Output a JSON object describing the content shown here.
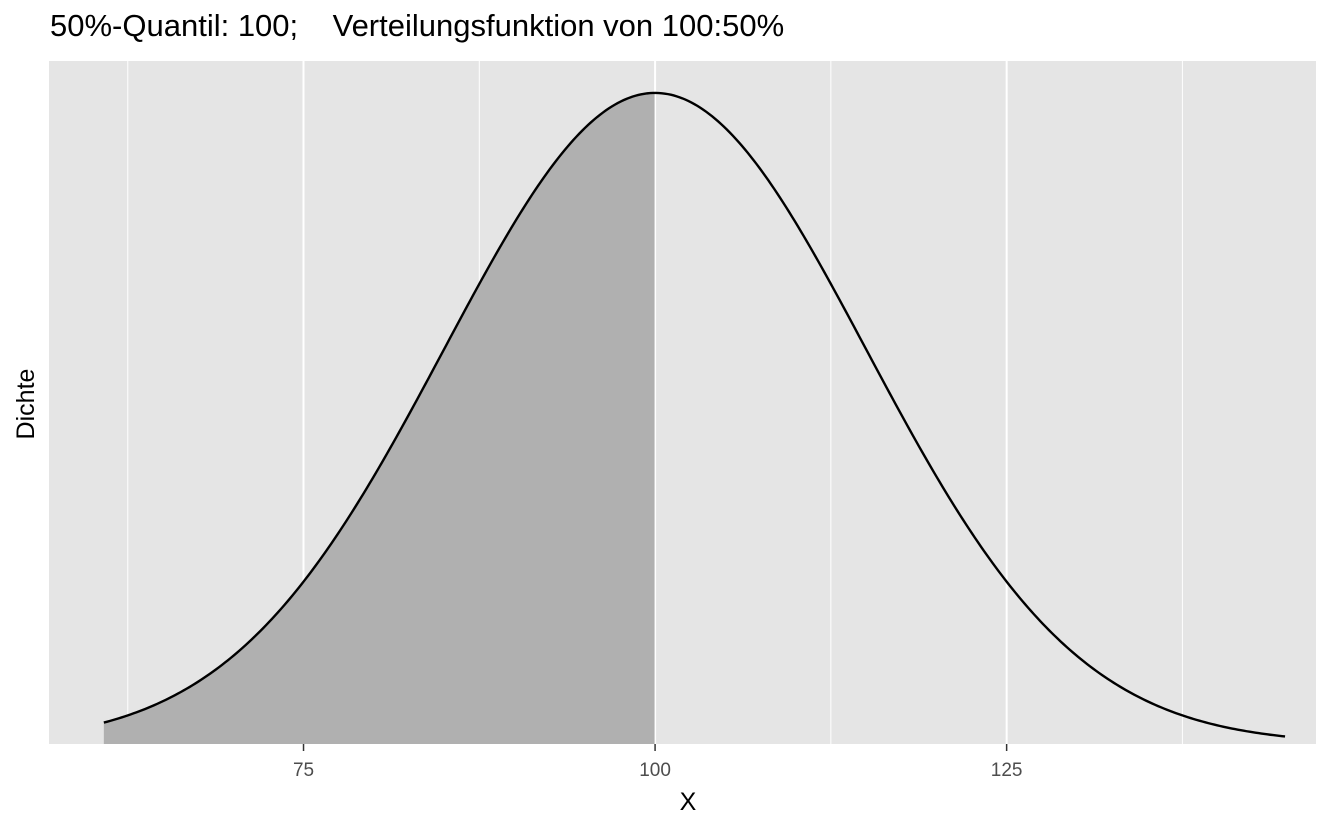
{
  "chart_data": {
    "type": "area",
    "title": "50%-Quantil: 100;    Verteilungsfunktion von 100:50%",
    "xlabel": "X",
    "ylabel": "Dichte",
    "x_ticks": [
      75,
      100,
      125
    ],
    "x_tick_labels": [
      "75",
      "100",
      "125"
    ],
    "x_minor_gridlines": [
      62.5,
      87.5,
      112.5,
      137.5
    ],
    "xlim": [
      56.9,
      147.0
    ],
    "ylim": [
      0,
      0.0279
    ],
    "grid": true,
    "y_ticks_shown": false,
    "series": [
      {
        "distribution": "normal",
        "mean": 100,
        "sd": 15,
        "x_range": [
          60.8,
          144.8
        ]
      }
    ],
    "shaded_region": {
      "x_from": 60.8,
      "x_to": 100,
      "probability": 0.5
    },
    "colors": {
      "panel_background": "#e5e5e5",
      "grid": "#ffffff",
      "curve": "#000000",
      "shade": "#b0b0b0"
    }
  }
}
